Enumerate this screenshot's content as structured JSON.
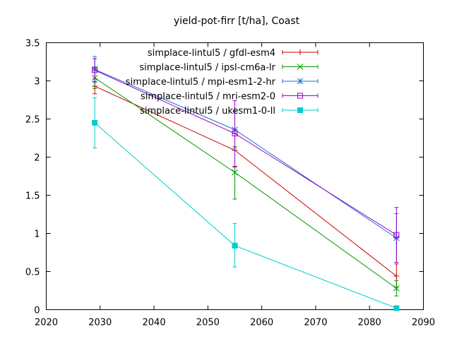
{
  "chart_data": {
    "type": "line",
    "title": "yield-pot-firr [t/ha], Coast",
    "xlabel": "",
    "ylabel": "",
    "xlim": [
      2020,
      2090
    ],
    "ylim": [
      0,
      3.5
    ],
    "xticks": [
      2020,
      2030,
      2040,
      2050,
      2060,
      2070,
      2080,
      2090
    ],
    "yticks": [
      0,
      0.5,
      1,
      1.5,
      2,
      2.5,
      3,
      3.5
    ],
    "grid": false,
    "legend": "top-right",
    "error_bars": true,
    "series": [
      {
        "name": "simplace-lintul5 / gfdl-esm4",
        "color": "#cc0000",
        "marker": "plus",
        "points": [
          {
            "x": 2029,
            "y": 2.93,
            "lo": 2.83,
            "hi": 3.03
          },
          {
            "x": 2055,
            "y": 2.09,
            "lo": 1.87,
            "hi": 2.31
          },
          {
            "x": 2085,
            "y": 0.44,
            "lo": 0.29,
            "hi": 0.6
          }
        ]
      },
      {
        "name": "simplace-lintul5 / ipsl-cm6a-lr",
        "color": "#009900",
        "marker": "x",
        "points": [
          {
            "x": 2029,
            "y": 3.04,
            "lo": 2.9,
            "hi": 3.18
          },
          {
            "x": 2055,
            "y": 1.8,
            "lo": 1.45,
            "hi": 2.14
          },
          {
            "x": 2085,
            "y": 0.28,
            "lo": 0.18,
            "hi": 0.38
          }
        ]
      },
      {
        "name": "simplace-lintul5 / mpi-esm1-2-hr",
        "color": "#1f6fd1",
        "marker": "star",
        "points": [
          {
            "x": 2029,
            "y": 3.15,
            "lo": 2.98,
            "hi": 3.32
          },
          {
            "x": 2055,
            "y": 2.36,
            "lo": 2.12,
            "hi": 2.6
          },
          {
            "x": 2085,
            "y": 0.94,
            "lo": 0.62,
            "hi": 1.26
          }
        ]
      },
      {
        "name": "simplace-lintul5 / mri-esm2-0",
        "color": "#9900cc",
        "marker": "square",
        "points": [
          {
            "x": 2029,
            "y": 3.14,
            "lo": 2.99,
            "hi": 3.29
          },
          {
            "x": 2055,
            "y": 2.31,
            "lo": 1.88,
            "hi": 2.74
          },
          {
            "x": 2085,
            "y": 0.98,
            "lo": 0.62,
            "hi": 1.34
          }
        ]
      },
      {
        "name": "simplace-lintul5 / ukesm1-0-ll",
        "color": "#00cccc",
        "marker": "filled-square",
        "points": [
          {
            "x": 2029,
            "y": 2.45,
            "lo": 2.12,
            "hi": 2.78
          },
          {
            "x": 2055,
            "y": 0.84,
            "lo": 0.56,
            "hi": 1.13
          },
          {
            "x": 2085,
            "y": 0.02,
            "lo": 0.01,
            "hi": 0.03
          }
        ]
      }
    ]
  }
}
